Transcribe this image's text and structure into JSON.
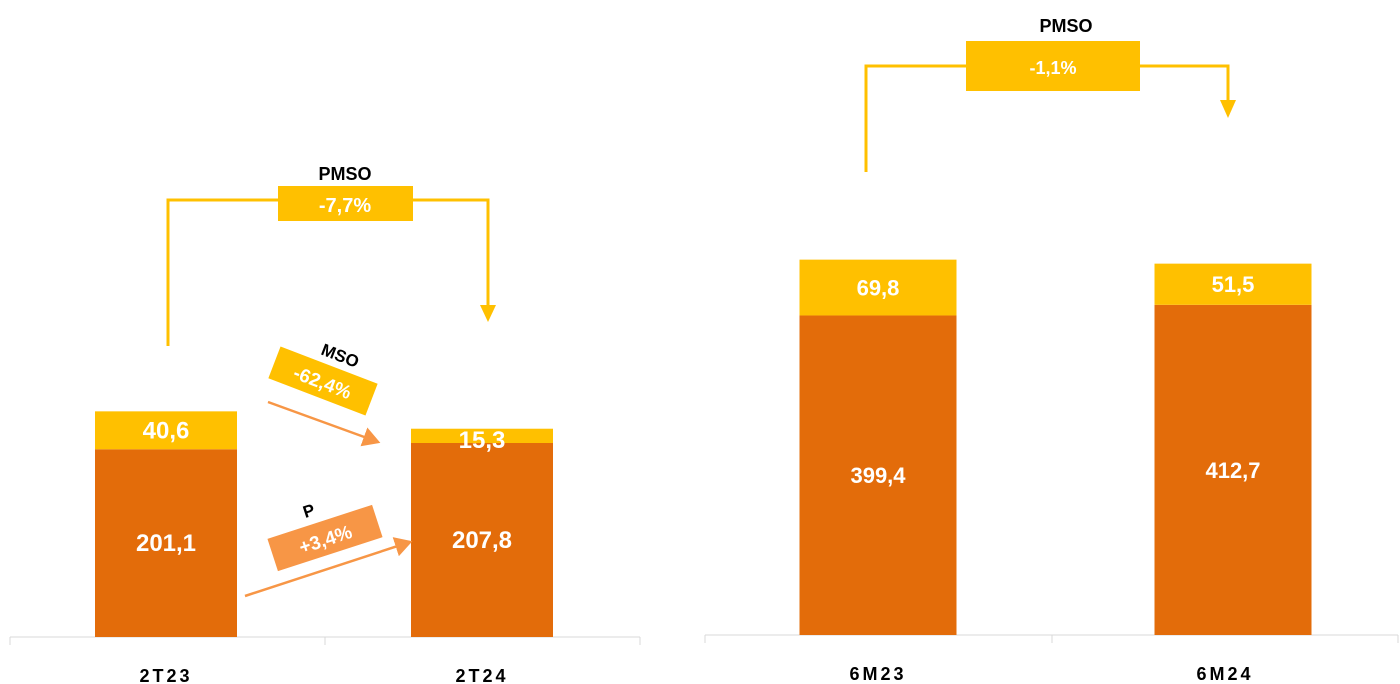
{
  "chart_data": [
    {
      "type": "bar",
      "stacked": true,
      "categories": [
        "2T23",
        "2T24"
      ],
      "series": [
        {
          "name": "P",
          "values": [
            201.1,
            207.8
          ],
          "labels": [
            "201,1",
            "207,8"
          ],
          "color": "#E36C0A"
        },
        {
          "name": "MSO",
          "values": [
            40.6,
            15.3
          ],
          "labels": [
            "40,6",
            "15,3"
          ],
          "color": "#FFC000"
        }
      ],
      "annotations": [
        {
          "title": "PMSO",
          "value": "-7,7%",
          "color": "#FFC000"
        },
        {
          "title": "MSO",
          "value": "-62,4%",
          "color": "#FFC000"
        },
        {
          "title": "P",
          "value": "+3,4%",
          "color": "#F79646"
        }
      ]
    },
    {
      "type": "bar",
      "stacked": true,
      "categories": [
        "6M23",
        "6M24"
      ],
      "series": [
        {
          "name": "P",
          "values": [
            399.4,
            412.7
          ],
          "labels": [
            "399,4",
            "412,7"
          ],
          "color": "#E36C0A"
        },
        {
          "name": "MSO",
          "values": [
            69.8,
            51.5
          ],
          "labels": [
            "69,8",
            "51,5"
          ],
          "color": "#FFC000"
        }
      ],
      "annotations": [
        {
          "title": "PMSO",
          "value": "-1,1%",
          "color": "#FFC000"
        }
      ]
    }
  ]
}
